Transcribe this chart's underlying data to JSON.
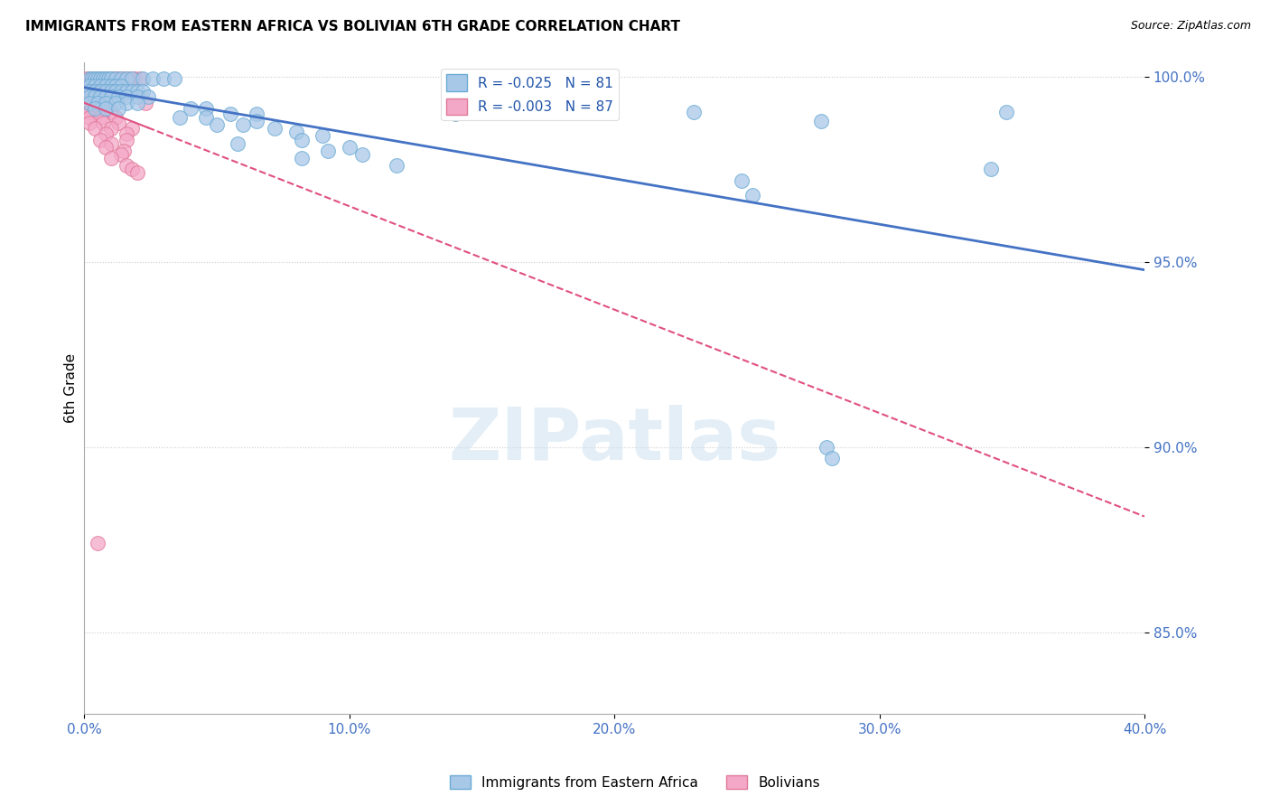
{
  "title": "IMMIGRANTS FROM EASTERN AFRICA VS BOLIVIAN 6TH GRADE CORRELATION CHART",
  "source": "Source: ZipAtlas.com",
  "ylabel": "6th Grade",
  "xlim": [
    0.0,
    0.4
  ],
  "ylim": [
    0.828,
    1.004
  ],
  "xtick_labels": [
    "0.0%",
    "10.0%",
    "20.0%",
    "30.0%",
    "40.0%"
  ],
  "xtick_values": [
    0.0,
    0.1,
    0.2,
    0.3,
    0.4
  ],
  "ytick_labels": [
    "85.0%",
    "90.0%",
    "95.0%",
    "100.0%"
  ],
  "ytick_values": [
    0.85,
    0.9,
    0.95,
    1.0
  ],
  "legend_label1": "Immigrants from Eastern Africa",
  "legend_label2": "Bolivians",
  "R1": -0.025,
  "N1": 81,
  "R2": -0.003,
  "N2": 87,
  "color_blue": "#a8c8e8",
  "color_blue_edge": "#6aaad4",
  "color_pink": "#f4a8c8",
  "color_pink_edge": "#e07898",
  "color_blue_line": "#4472c4",
  "color_pink_line": "#e05080",
  "watermark": "ZIPatlas",
  "blue_points": [
    [
      0.002,
      0.9995
    ],
    [
      0.003,
      0.9995
    ],
    [
      0.004,
      0.9995
    ],
    [
      0.005,
      0.9995
    ],
    [
      0.006,
      0.9995
    ],
    [
      0.007,
      0.9995
    ],
    [
      0.008,
      0.9995
    ],
    [
      0.009,
      0.9995
    ],
    [
      0.01,
      0.9995
    ],
    [
      0.012,
      0.9995
    ],
    [
      0.014,
      0.9995
    ],
    [
      0.016,
      0.9995
    ],
    [
      0.018,
      0.9995
    ],
    [
      0.022,
      0.9995
    ],
    [
      0.026,
      0.9995
    ],
    [
      0.03,
      0.9995
    ],
    [
      0.034,
      0.9995
    ],
    [
      0.002,
      0.9975
    ],
    [
      0.004,
      0.9975
    ],
    [
      0.006,
      0.9975
    ],
    [
      0.008,
      0.9975
    ],
    [
      0.01,
      0.9975
    ],
    [
      0.012,
      0.9975
    ],
    [
      0.014,
      0.9975
    ],
    [
      0.002,
      0.996
    ],
    [
      0.004,
      0.996
    ],
    [
      0.006,
      0.996
    ],
    [
      0.008,
      0.996
    ],
    [
      0.01,
      0.996
    ],
    [
      0.012,
      0.996
    ],
    [
      0.014,
      0.996
    ],
    [
      0.016,
      0.996
    ],
    [
      0.018,
      0.996
    ],
    [
      0.02,
      0.996
    ],
    [
      0.022,
      0.996
    ],
    [
      0.002,
      0.9945
    ],
    [
      0.004,
      0.9945
    ],
    [
      0.006,
      0.9945
    ],
    [
      0.008,
      0.9945
    ],
    [
      0.01,
      0.9945
    ],
    [
      0.013,
      0.9945
    ],
    [
      0.016,
      0.9945
    ],
    [
      0.02,
      0.9945
    ],
    [
      0.024,
      0.9945
    ],
    [
      0.002,
      0.993
    ],
    [
      0.005,
      0.993
    ],
    [
      0.008,
      0.993
    ],
    [
      0.012,
      0.993
    ],
    [
      0.016,
      0.993
    ],
    [
      0.02,
      0.993
    ],
    [
      0.004,
      0.9915
    ],
    [
      0.008,
      0.9915
    ],
    [
      0.013,
      0.9915
    ],
    [
      0.04,
      0.9915
    ],
    [
      0.046,
      0.9915
    ],
    [
      0.055,
      0.99
    ],
    [
      0.065,
      0.99
    ],
    [
      0.14,
      0.99
    ],
    [
      0.036,
      0.989
    ],
    [
      0.046,
      0.989
    ],
    [
      0.065,
      0.988
    ],
    [
      0.05,
      0.987
    ],
    [
      0.06,
      0.987
    ],
    [
      0.072,
      0.986
    ],
    [
      0.08,
      0.985
    ],
    [
      0.09,
      0.984
    ],
    [
      0.082,
      0.983
    ],
    [
      0.058,
      0.982
    ],
    [
      0.1,
      0.981
    ],
    [
      0.092,
      0.98
    ],
    [
      0.105,
      0.979
    ],
    [
      0.118,
      0.976
    ],
    [
      0.082,
      0.978
    ],
    [
      0.15,
      0.9905
    ],
    [
      0.23,
      0.9905
    ],
    [
      0.278,
      0.988
    ],
    [
      0.248,
      0.972
    ],
    [
      0.252,
      0.968
    ],
    [
      0.348,
      0.9905
    ],
    [
      0.342,
      0.975
    ],
    [
      0.195,
      0.991
    ],
    [
      0.28,
      0.9
    ],
    [
      0.282,
      0.897
    ]
  ],
  "pink_points": [
    [
      0.001,
      0.9995
    ],
    [
      0.002,
      0.9995
    ],
    [
      0.003,
      0.9995
    ],
    [
      0.004,
      0.9995
    ],
    [
      0.005,
      0.9995
    ],
    [
      0.006,
      0.9995
    ],
    [
      0.007,
      0.9995
    ],
    [
      0.008,
      0.9995
    ],
    [
      0.009,
      0.9995
    ],
    [
      0.01,
      0.9995
    ],
    [
      0.011,
      0.9995
    ],
    [
      0.012,
      0.9995
    ],
    [
      0.013,
      0.9995
    ],
    [
      0.014,
      0.9995
    ],
    [
      0.015,
      0.9995
    ],
    [
      0.017,
      0.9995
    ],
    [
      0.019,
      0.9995
    ],
    [
      0.021,
      0.9995
    ],
    [
      0.001,
      0.998
    ],
    [
      0.002,
      0.998
    ],
    [
      0.003,
      0.998
    ],
    [
      0.004,
      0.998
    ],
    [
      0.005,
      0.998
    ],
    [
      0.006,
      0.998
    ],
    [
      0.001,
      0.9965
    ],
    [
      0.002,
      0.9965
    ],
    [
      0.003,
      0.9965
    ],
    [
      0.004,
      0.9965
    ],
    [
      0.005,
      0.9965
    ],
    [
      0.006,
      0.9965
    ],
    [
      0.001,
      0.995
    ],
    [
      0.002,
      0.995
    ],
    [
      0.003,
      0.995
    ],
    [
      0.004,
      0.995
    ],
    [
      0.005,
      0.995
    ],
    [
      0.001,
      0.9935
    ],
    [
      0.002,
      0.9935
    ],
    [
      0.003,
      0.9935
    ],
    [
      0.004,
      0.9935
    ],
    [
      0.006,
      0.9935
    ],
    [
      0.009,
      0.9935
    ],
    [
      0.001,
      0.992
    ],
    [
      0.003,
      0.992
    ],
    [
      0.006,
      0.992
    ],
    [
      0.002,
      0.9905
    ],
    [
      0.005,
      0.9905
    ],
    [
      0.01,
      0.9905
    ],
    [
      0.002,
      0.989
    ],
    [
      0.006,
      0.989
    ],
    [
      0.012,
      0.989
    ],
    [
      0.002,
      0.9875
    ],
    [
      0.007,
      0.9875
    ],
    [
      0.013,
      0.9875
    ],
    [
      0.004,
      0.986
    ],
    [
      0.01,
      0.986
    ],
    [
      0.018,
      0.986
    ],
    [
      0.008,
      0.9845
    ],
    [
      0.016,
      0.9845
    ],
    [
      0.006,
      0.983
    ],
    [
      0.016,
      0.983
    ],
    [
      0.01,
      0.982
    ],
    [
      0.008,
      0.981
    ],
    [
      0.015,
      0.98
    ],
    [
      0.014,
      0.979
    ],
    [
      0.01,
      0.978
    ],
    [
      0.016,
      0.976
    ],
    [
      0.018,
      0.975
    ],
    [
      0.02,
      0.974
    ],
    [
      0.005,
      0.874
    ],
    [
      0.023,
      0.993
    ]
  ]
}
